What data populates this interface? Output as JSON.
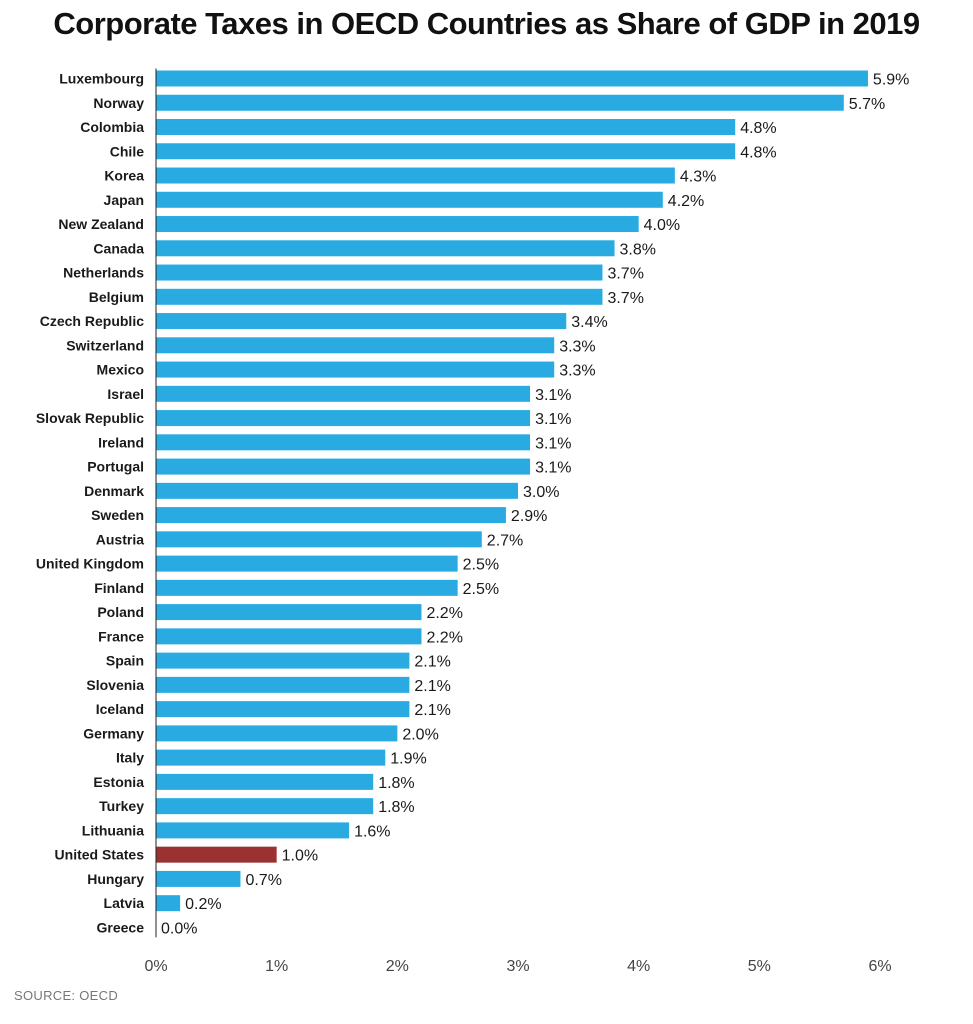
{
  "chart_data": {
    "type": "bar",
    "orientation": "horizontal",
    "title": "Corporate Taxes in OECD Countries as Share of GDP in 2019",
    "xlabel": "",
    "ylabel": "",
    "categories": [
      "Luxembourg",
      "Norway",
      "Colombia",
      "Chile",
      "Korea",
      "Japan",
      "New Zealand",
      "Canada",
      "Netherlands",
      "Belgium",
      "Czech Republic",
      "Switzerland",
      "Mexico",
      "Israel",
      "Slovak Republic",
      "Ireland",
      "Portugal",
      "Denmark",
      "Sweden",
      "Austria",
      "United Kingdom",
      "Finland",
      "Poland",
      "France",
      "Spain",
      "Slovenia",
      "Iceland",
      "Germany",
      "Italy",
      "Estonia",
      "Turkey",
      "Lithuania",
      "United States",
      "Hungary",
      "Latvia",
      "Greece"
    ],
    "values": [
      5.9,
      5.7,
      4.8,
      4.8,
      4.3,
      4.2,
      4.0,
      3.8,
      3.7,
      3.7,
      3.4,
      3.3,
      3.3,
      3.1,
      3.1,
      3.1,
      3.1,
      3.0,
      2.9,
      2.7,
      2.5,
      2.5,
      2.2,
      2.2,
      2.1,
      2.1,
      2.1,
      2.0,
      1.9,
      1.8,
      1.8,
      1.6,
      1.0,
      0.7,
      0.2,
      0.0
    ],
    "value_labels": [
      "5.9%",
      "5.7%",
      "4.8%",
      "4.8%",
      "4.3%",
      "4.2%",
      "4.0%",
      "3.8%",
      "3.7%",
      "3.7%",
      "3.4%",
      "3.3%",
      "3.3%",
      "3.1%",
      "3.1%",
      "3.1%",
      "3.1%",
      "3.0%",
      "2.9%",
      "2.7%",
      "2.5%",
      "2.5%",
      "2.2%",
      "2.2%",
      "2.1%",
      "2.1%",
      "2.1%",
      "2.0%",
      "1.9%",
      "1.8%",
      "1.8%",
      "1.6%",
      "1.0%",
      "0.7%",
      "0.2%",
      "0.0%"
    ],
    "xlim": [
      0,
      6
    ],
    "xticks": [
      0,
      1,
      2,
      3,
      4,
      5,
      6
    ],
    "xtick_labels": [
      "0%",
      "1%",
      "2%",
      "3%",
      "4%",
      "5%",
      "6%"
    ],
    "grid": false,
    "legend": "none",
    "bar_color": "#29abe2",
    "highlight_category": "United States",
    "highlight_color": "#9b3232"
  },
  "source": "SOURCE: OECD"
}
